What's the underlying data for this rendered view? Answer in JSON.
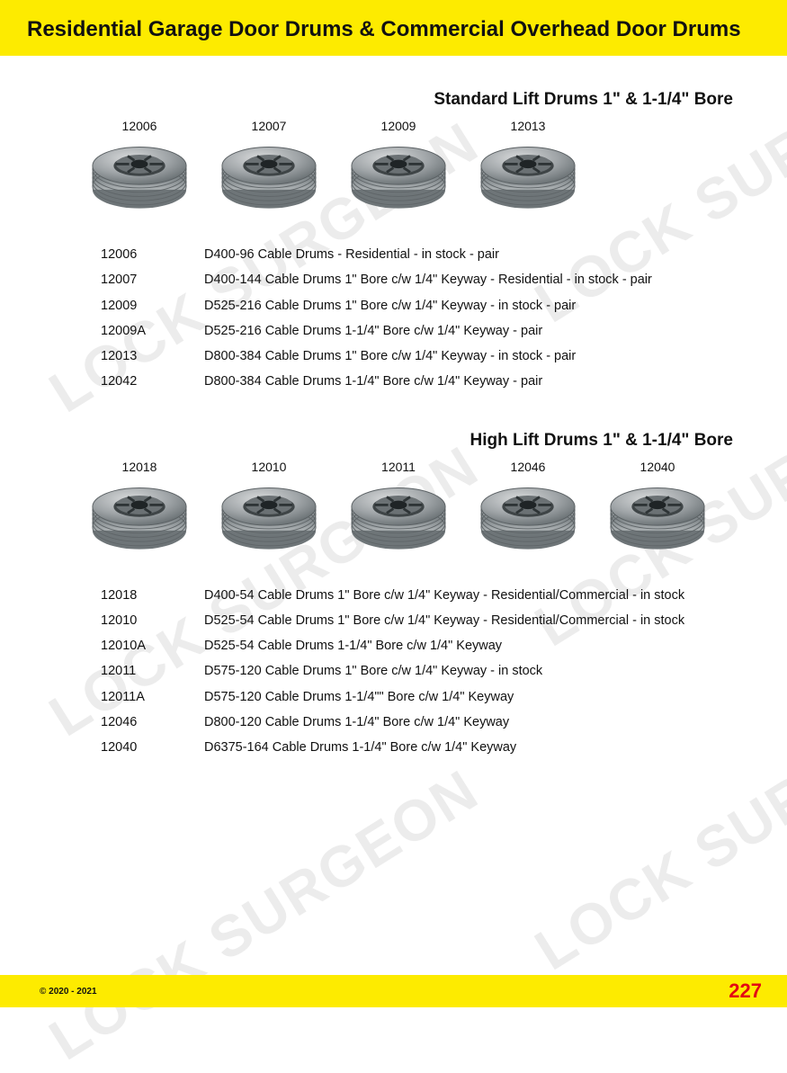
{
  "colors": {
    "header_bg": "#fdeb00",
    "page_num": "#e30613",
    "text": "#111111",
    "background": "#ffffff",
    "watermark_opacity": 0.07
  },
  "watermark_text": "LOCK SURGEON",
  "header": {
    "title": "Residential Garage Door Drums & Commercial Overhead Door Drums"
  },
  "section1": {
    "title": "Standard Lift Drums 1\" & 1-1/4\" Bore",
    "drums": [
      {
        "label": "12006"
      },
      {
        "label": "12007"
      },
      {
        "label": "12009"
      },
      {
        "label": "12013"
      }
    ],
    "specs": [
      {
        "code": "12006",
        "desc": "D400-96 Cable Drums - Residential - in stock - pair"
      },
      {
        "code": "12007",
        "desc": "D400-144 Cable Drums 1\" Bore c/w 1/4\" Keyway - Residential - in stock - pair"
      },
      {
        "code": "12009",
        "desc": "D525-216 Cable Drums 1\" Bore c/w 1/4\" Keyway - in stock - pair"
      },
      {
        "code": "12009A",
        "desc": "D525-216 Cable Drums 1-1/4\" Bore c/w 1/4\" Keyway - pair"
      },
      {
        "code": "12013",
        "desc": "D800-384 Cable Drums 1\" Bore c/w 1/4\" Keyway - in stock - pair"
      },
      {
        "code": "12042",
        "desc": "D800-384 Cable Drums 1-1/4\" Bore c/w 1/4\" Keyway  - pair"
      }
    ]
  },
  "section2": {
    "title": "High Lift Drums 1\" & 1-1/4\" Bore",
    "drums": [
      {
        "label": "12018"
      },
      {
        "label": "12010"
      },
      {
        "label": "12011"
      },
      {
        "label": "12046"
      },
      {
        "label": "12040"
      }
    ],
    "specs": [
      {
        "code": "12018",
        "desc": "D400-54 Cable Drums 1\" Bore c/w 1/4\" Keyway - Residential/Commercial - in stock"
      },
      {
        "code": "12010",
        "desc": "D525-54 Cable Drums 1\" Bore c/w 1/4\" Keyway - Residential/Commercial - in stock"
      },
      {
        "code": "12010A",
        "desc": "D525-54 Cable Drums 1-1/4\" Bore c/w 1/4\" Keyway"
      },
      {
        "code": "12011",
        "desc": "D575-120 Cable Drums 1\" Bore c/w 1/4\" Keyway - in stock"
      },
      {
        "code": "12011A",
        "desc": "D575-120 Cable Drums 1-1/4\"\" Bore c/w 1/4\" Keyway"
      },
      {
        "code": "12046",
        "desc": "D800-120 Cable Drums 1-1/4\" Bore c/w 1/4\" Keyway"
      },
      {
        "code": "12040",
        "desc": "D6375-164 Cable Drums 1-1/4\" Bore c/w 1/4\" Keyway"
      }
    ]
  },
  "footer": {
    "copyright": "© 2020 - 2021",
    "page": "227"
  }
}
